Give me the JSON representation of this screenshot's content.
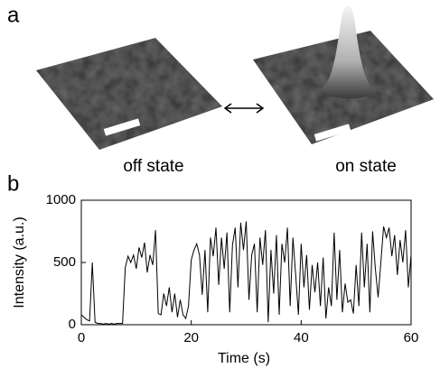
{
  "panel_a": {
    "label": "a",
    "captions": [
      "off state",
      "on state"
    ]
  },
  "chart_data": {
    "type": "line",
    "panel_label": "b",
    "x_label": "Time (s)",
    "y_label": "Intensity (a.u.)",
    "x": [
      0,
      0.5,
      1,
      1.5,
      2,
      2.5,
      3,
      3.5,
      4,
      4.5,
      5,
      5.5,
      6,
      6.5,
      7,
      7.5,
      8,
      8.5,
      9,
      9.5,
      10,
      10.5,
      11,
      11.5,
      12,
      12.5,
      13,
      13.5,
      14,
      14.5,
      15,
      15.5,
      16,
      16.5,
      17,
      17.5,
      18,
      18.5,
      19,
      19.5,
      20,
      20.5,
      21,
      21.5,
      22,
      22.5,
      23,
      23.5,
      24,
      24.5,
      25,
      25.5,
      26,
      26.5,
      27,
      27.5,
      28,
      28.5,
      29,
      29.5,
      30,
      30.5,
      31,
      31.5,
      32,
      32.5,
      33,
      33.5,
      34,
      34.5,
      35,
      35.5,
      36,
      36.5,
      37,
      37.5,
      38,
      38.5,
      39,
      39.5,
      40,
      40.5,
      41,
      41.5,
      42,
      42.5,
      43,
      43.5,
      44,
      44.5,
      45,
      45.5,
      46,
      46.5,
      47,
      47.5,
      48,
      48.5,
      49,
      49.5,
      50,
      50.5,
      51,
      51.5,
      52,
      52.5,
      53,
      53.5,
      54,
      54.5,
      55,
      55.5,
      56,
      56.5,
      57,
      57.5,
      58,
      58.5,
      59,
      59.5,
      60
    ],
    "values": [
      80,
      60,
      40,
      30,
      500,
      20,
      10,
      10,
      5,
      10,
      5,
      10,
      5,
      10,
      10,
      10,
      460,
      550,
      500,
      560,
      450,
      620,
      540,
      660,
      420,
      560,
      480,
      760,
      90,
      80,
      250,
      150,
      300,
      100,
      250,
      60,
      200,
      80,
      50,
      150,
      520,
      600,
      650,
      560,
      240,
      600,
      100,
      700,
      550,
      780,
      320,
      700,
      450,
      740,
      100,
      640,
      780,
      300,
      820,
      600,
      830,
      200,
      560,
      650,
      100,
      700,
      480,
      760,
      20,
      600,
      250,
      720,
      80,
      650,
      500,
      780,
      150,
      700,
      400,
      80,
      650,
      300,
      560,
      120,
      480,
      260,
      500,
      150,
      540,
      50,
      300,
      150,
      740,
      200,
      600,
      100,
      330,
      180,
      200,
      90,
      480,
      150,
      740,
      300,
      650,
      100,
      750,
      450,
      220,
      500,
      790,
      700,
      780,
      550,
      720,
      400,
      680,
      500,
      760,
      300,
      560
    ],
    "color": "#000000",
    "xlim": [
      0,
      60
    ],
    "ylim": [
      0,
      1000
    ],
    "xticks": [
      0,
      20,
      40,
      60
    ],
    "yticks": [
      0,
      500,
      1000
    ]
  }
}
